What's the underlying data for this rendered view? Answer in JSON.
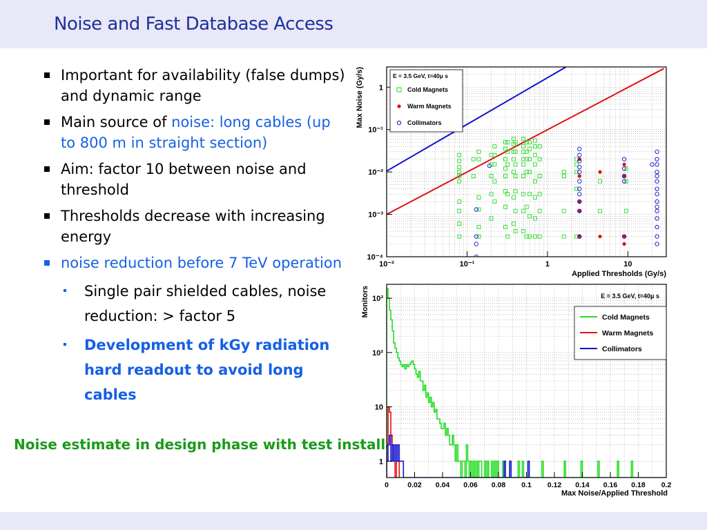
{
  "slide": {
    "title": "Noise and Fast Database Access",
    "bullets": [
      {
        "text": "Important for availability (false dumps) and dynamic range"
      },
      {
        "text_pre": "Main source of ",
        "text_hl": "noise: long cables (up to 800 m in straight section)"
      },
      {
        "text": "Aim: factor 10 between noise and threshold"
      },
      {
        "text": "Thresholds decrease with increasing energy"
      },
      {
        "text": "noise reduction before 7 TeV operation"
      }
    ],
    "sub_bullets": [
      {
        "text": "Single pair shielded cables, noise reduction: > factor 5"
      },
      {
        "text": "Development of kGy radiation hard readout to avoid long cables"
      }
    ],
    "note": "Noise estimate in design phase with test installations at comparable locations"
  },
  "colors": {
    "cold": "#22dd22",
    "warm": "#e01010",
    "coll": "#1010d0"
  },
  "chart_data": [
    {
      "type": "scatter",
      "title": "E = 3.5 GeV, t=40μ s",
      "xlabel": "Applied Thresholds (Gy/s)",
      "ylabel": "Max Noise (Gy/s)",
      "x_scale": "log",
      "y_scale": "log",
      "xlim": [
        0.01,
        30
      ],
      "ylim": [
        0.0001,
        3
      ],
      "x_ticks": [
        {
          "v": 0.01,
          "label": "10⁻²"
        },
        {
          "v": 0.1,
          "label": "10⁻¹"
        },
        {
          "v": 1,
          "label": "1"
        },
        {
          "v": 10,
          "label": "10"
        }
      ],
      "y_ticks": [
        {
          "v": 0.0001,
          "label": "10⁻⁴"
        },
        {
          "v": 0.001,
          "label": "10⁻³"
        },
        {
          "v": 0.01,
          "label": "10⁻²"
        },
        {
          "v": 0.1,
          "label": "10⁻¹"
        },
        {
          "v": 1,
          "label": "1"
        }
      ],
      "legend": {
        "placement": "top-left",
        "entries": [
          "Cold Magnets",
          "Warm Magnets",
          "Collimators"
        ]
      },
      "lines": [
        {
          "name": "Collimators",
          "x": [
            0.01,
            1.7
          ],
          "y": [
            0.0105,
            3
          ]
        },
        {
          "name": "Warm Magnets",
          "x": [
            0.01,
            28
          ],
          "y": [
            0.001,
            2.75
          ]
        }
      ],
      "series": [
        {
          "name": "Cold Magnets",
          "marker": "open-square",
          "x": [
            0.08,
            0.08,
            0.08,
            0.08,
            0.08,
            0.08,
            0.08,
            0.08,
            0.08,
            0.08,
            0.12,
            0.12,
            0.14,
            0.14,
            0.14,
            0.14,
            0.14,
            0.14,
            0.2,
            0.2,
            0.2,
            0.2,
            0.2,
            0.22,
            0.22,
            0.22,
            0.22,
            0.22,
            0.3,
            0.3,
            0.3,
            0.3,
            0.3,
            0.3,
            0.3,
            0.3,
            0.32,
            0.32,
            0.32,
            0.32,
            0.32,
            0.38,
            0.38,
            0.38,
            0.38,
            0.38,
            0.38,
            0.38,
            0.4,
            0.4,
            0.4,
            0.4,
            0.4,
            0.4,
            0.4,
            0.5,
            0.5,
            0.5,
            0.5,
            0.5,
            0.5,
            0.5,
            0.5,
            0.5,
            0.55,
            0.55,
            0.55,
            0.55,
            0.55,
            0.55,
            0.6,
            0.6,
            0.6,
            0.6,
            0.6,
            0.6,
            0.6,
            0.7,
            0.7,
            0.7,
            0.7,
            0.7,
            0.7,
            0.7,
            0.7,
            0.8,
            0.8,
            0.8,
            0.8,
            0.8,
            0.8,
            1.6,
            1.6,
            1.6,
            1.6,
            2.3,
            2.3,
            2.3,
            2.3,
            2.3,
            4.5,
            4.5,
            9.5,
            9.5,
            9.5
          ],
          "y": [
            0.025,
            0.018,
            0.013,
            0.01,
            0.008,
            0.006,
            0.002,
            0.0012,
            0.0006,
            0.0003,
            0.02,
            0.008,
            0.03,
            0.02,
            0.0025,
            0.0013,
            0.0005,
            0.0003,
            0.025,
            0.015,
            0.008,
            0.003,
            0.0008,
            0.04,
            0.025,
            0.015,
            0.006,
            0.002,
            0.05,
            0.035,
            0.02,
            0.012,
            0.008,
            0.0035,
            0.0015,
            0.0005,
            0.05,
            0.03,
            0.015,
            0.003,
            0.0003,
            0.06,
            0.045,
            0.03,
            0.02,
            0.01,
            0.0025,
            0.0006,
            0.05,
            0.03,
            0.015,
            0.008,
            0.0035,
            0.0012,
            0.0004,
            0.06,
            0.04,
            0.03,
            0.02,
            0.015,
            0.008,
            0.003,
            0.0012,
            0.0004,
            0.05,
            0.03,
            0.02,
            0.01,
            0.0015,
            0.0003,
            0.05,
            0.035,
            0.02,
            0.01,
            0.003,
            0.0009,
            0.0003,
            0.055,
            0.04,
            0.025,
            0.015,
            0.006,
            0.0025,
            0.0008,
            0.0003,
            0.04,
            0.02,
            0.008,
            0.003,
            0.0012,
            0.0003,
            0.01,
            0.008,
            0.0012,
            0.0003,
            0.02,
            0.015,
            0.01,
            0.004,
            0.0003,
            0.006,
            0.0012,
            0.012,
            0.006,
            0.0012
          ]
        },
        {
          "name": "Warm Magnets",
          "marker": "filled-circle",
          "x": [
            2.5,
            2.5,
            2.5,
            2.5,
            2.5,
            4.5,
            4.5,
            9,
            9,
            9,
            9
          ],
          "y": [
            0.02,
            0.008,
            0.002,
            0.0012,
            0.0003,
            0.01,
            0.0003,
            0.015,
            0.008,
            0.0003,
            0.0002
          ]
        },
        {
          "name": "Collimators",
          "marker": "open-circle",
          "x": [
            0.13,
            0.13,
            0.13,
            0.13,
            0.19,
            2.5,
            2.5,
            2.5,
            2.5,
            2.5,
            2.5,
            2.5,
            2.5,
            2.5,
            2.5,
            2.5,
            9,
            9,
            9,
            9,
            9,
            20,
            23,
            23,
            23,
            23,
            23,
            23,
            23,
            23,
            23,
            23,
            23,
            23,
            23,
            23,
            23
          ],
          "y": [
            0.0013,
            0.0003,
            0.0002,
            0.0001,
            0.014,
            0.035,
            0.025,
            0.018,
            0.013,
            0.01,
            0.006,
            0.004,
            0.003,
            0.002,
            0.0012,
            0.0003,
            0.02,
            0.012,
            0.008,
            0.006,
            0.0003,
            0.015,
            0.03,
            0.02,
            0.015,
            0.01,
            0.008,
            0.006,
            0.004,
            0.003,
            0.002,
            0.0015,
            0.0012,
            0.0008,
            0.0005,
            0.0003,
            0.0002
          ]
        }
      ]
    },
    {
      "type": "histogram",
      "title": "E = 3.5 GeV, t=40μ s",
      "xlabel": "Max Noise/Applied Threshold",
      "ylabel": "Monitors",
      "y_scale": "log",
      "xlim": [
        0,
        0.2
      ],
      "ylim": [
        0.5,
        1800
      ],
      "x_ticks": [
        {
          "v": 0,
          "label": "0"
        },
        {
          "v": 0.02,
          "label": "0.02"
        },
        {
          "v": 0.04,
          "label": "0.04"
        },
        {
          "v": 0.06,
          "label": "0.06"
        },
        {
          "v": 0.08,
          "label": "0.08"
        },
        {
          "v": 0.1,
          "label": "0.1"
        },
        {
          "v": 0.12,
          "label": "0.12"
        },
        {
          "v": 0.14,
          "label": "0.14"
        },
        {
          "v": 0.16,
          "label": "0.16"
        },
        {
          "v": 0.18,
          "label": "0.18"
        },
        {
          "v": 0.2,
          "label": "0.2"
        }
      ],
      "y_ticks": [
        {
          "v": 1,
          "label": "1"
        },
        {
          "v": 10,
          "label": "10"
        },
        {
          "v": 100,
          "label": "10²"
        },
        {
          "v": 1000,
          "label": "10³"
        }
      ],
      "legend": {
        "placement": "top-right",
        "entries": [
          "Cold Magnets",
          "Warm Magnets",
          "Collimators"
        ]
      },
      "bin_width": 0.001,
      "series": [
        {
          "name": "Cold Magnets",
          "values": [
            1500,
            1000,
            600,
            400,
            250,
            150,
            120,
            100,
            80,
            70,
            60,
            55,
            60,
            50,
            60,
            55,
            60,
            65,
            70,
            60,
            50,
            40,
            35,
            45,
            30,
            30,
            20,
            25,
            15,
            18,
            12,
            15,
            10,
            12,
            8,
            9,
            6,
            6,
            5,
            4,
            4,
            5,
            3,
            4,
            3,
            2,
            2,
            3,
            2,
            1,
            2,
            1,
            1,
            0,
            1,
            1,
            0,
            2,
            1,
            0,
            1,
            0,
            1,
            0,
            1,
            0,
            1,
            1,
            0,
            0,
            1,
            0,
            1,
            0,
            0,
            1,
            0,
            1,
            0,
            1,
            0,
            0,
            0,
            1,
            0,
            0,
            0,
            0,
            1,
            0,
            0,
            0,
            0,
            0,
            1,
            0,
            0,
            1,
            0,
            0,
            0,
            0,
            0,
            0,
            0,
            0,
            0,
            0,
            0,
            0,
            0,
            1,
            0,
            0,
            0,
            0,
            0,
            0,
            0,
            0,
            0,
            0,
            0,
            0,
            0,
            0,
            0,
            1,
            0,
            0,
            0,
            0,
            0,
            0,
            0,
            0,
            0,
            0,
            0,
            1,
            0,
            0,
            0,
            0,
            0,
            0,
            0,
            0,
            0,
            0,
            0,
            1,
            0,
            0,
            0,
            0,
            0,
            0,
            0,
            0,
            0,
            0,
            0,
            0,
            0,
            1,
            0,
            0,
            0,
            0,
            0,
            0,
            0,
            0,
            0,
            1,
            0,
            0,
            0,
            0,
            0,
            0,
            0,
            0,
            0,
            0,
            0,
            0,
            0,
            0,
            0,
            0,
            0,
            0,
            0,
            0,
            0,
            0,
            0,
            0,
            0,
            0,
            0,
            0,
            0,
            0,
            0
          ]
        },
        {
          "name": "Warm Magnets",
          "values": [
            2,
            10,
            8,
            3,
            2,
            1,
            0,
            1,
            1
          ]
        },
        {
          "name": "Collimators",
          "values": [
            1,
            2,
            3,
            1,
            2,
            1,
            2,
            1,
            2,
            1,
            1,
            1,
            0,
            0,
            0,
            0,
            0,
            0,
            0,
            0,
            0,
            0,
            0,
            0,
            0,
            0,
            0,
            0,
            0,
            0,
            0,
            0,
            0,
            0,
            0,
            0,
            0,
            0,
            0,
            0,
            0,
            0,
            0,
            0,
            0,
            0,
            0,
            0,
            0,
            0,
            0,
            0,
            0,
            0,
            0,
            0,
            0,
            0,
            0,
            0,
            0,
            0,
            0,
            0,
            0,
            0,
            0,
            0,
            0,
            0,
            0,
            0,
            0,
            0,
            0,
            0,
            0,
            0,
            0,
            0,
            0,
            0,
            0,
            0,
            1,
            0,
            0,
            0,
            1,
            0,
            0,
            0,
            0,
            0,
            0,
            0,
            0,
            0,
            0,
            0,
            0,
            1
          ]
        }
      ]
    }
  ]
}
